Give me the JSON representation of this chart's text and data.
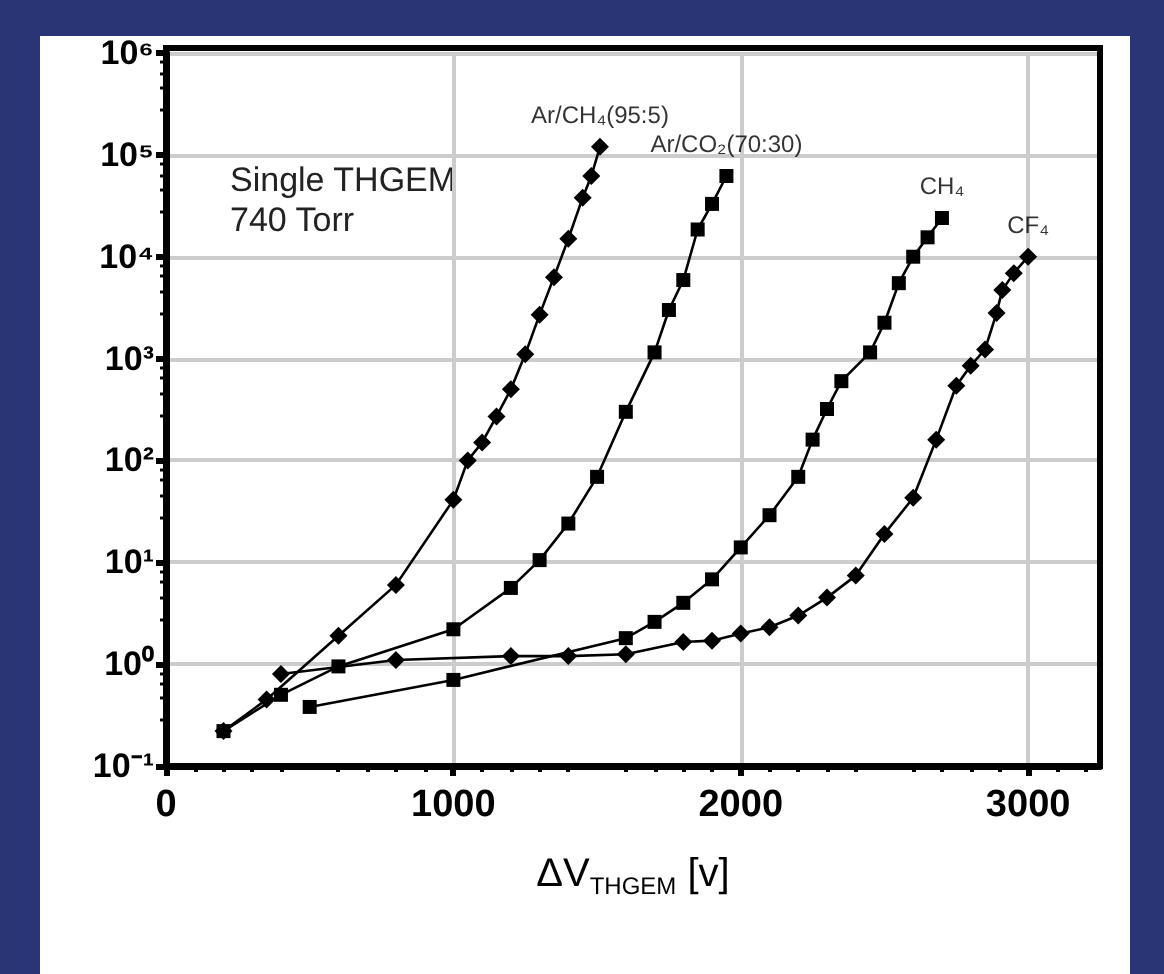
{
  "chart_data": {
    "type": "line",
    "xlabel": "ΔV$_{THGEM}$ [v]",
    "annotations": [
      "Single THGEM\n740 Torr"
    ],
    "series": [
      {
        "name": "Ar/CH₄(95:5)",
        "color": "#000000",
        "marker": "diamond",
        "x": [
          200,
          350,
          600,
          800,
          1000,
          1050,
          1100,
          1150,
          1200,
          1250,
          1300,
          1350,
          1400,
          1450,
          1480,
          1510
        ],
        "values": [
          0.22,
          0.45,
          1.9,
          6,
          41,
          100,
          150,
          270,
          500,
          1100,
          2700,
          6300,
          15000,
          38000,
          62000,
          120000
        ]
      },
      {
        "name": "Ar/CO₂(70:30)",
        "color": "#000000",
        "marker": "square",
        "x": [
          200,
          400,
          600,
          1000,
          1200,
          1300,
          1400,
          1500,
          1600,
          1700,
          1750,
          1800,
          1850,
          1900,
          1950
        ],
        "values": [
          0.22,
          0.5,
          0.95,
          2.2,
          5.6,
          10.5,
          24,
          69,
          300,
          1150,
          3000,
          5900,
          18500,
          33000,
          62000
        ]
      },
      {
        "name": "CH₄",
        "color": "#000000",
        "marker": "square",
        "x": [
          500,
          1000,
          1600,
          1700,
          1800,
          1900,
          2000,
          2100,
          2200,
          2250,
          2300,
          2350,
          2450,
          2500,
          2550,
          2600,
          2650,
          2700
        ],
        "values": [
          0.38,
          0.7,
          1.8,
          2.6,
          4,
          6.8,
          14,
          29,
          69,
          160,
          320,
          600,
          1150,
          2250,
          5500,
          10000,
          15500,
          24000
        ]
      },
      {
        "name": "CF₄",
        "color": "#000000",
        "marker": "diamond",
        "x": [
          400,
          800,
          1200,
          1400,
          1600,
          1800,
          1900,
          2000,
          2100,
          2200,
          2300,
          2400,
          2500,
          2600,
          2680,
          2750,
          2800,
          2850,
          2890,
          2910,
          2950,
          3000
        ],
        "values": [
          0.8,
          1.1,
          1.2,
          1.2,
          1.25,
          1.65,
          1.7,
          2,
          2.3,
          3,
          4.5,
          7.4,
          19,
          43,
          160,
          540,
          850,
          1230,
          2800,
          4700,
          6900,
          10000
        ]
      }
    ],
    "log": "y",
    "xlim": [
      0,
      3250
    ],
    "xticks": [
      0,
      1000,
      2000,
      3000
    ],
    "ylim": [
      0.1,
      1000000
    ],
    "yticks": [
      {
        "value": 0.1,
        "label": "10⁻¹"
      },
      {
        "value": 1,
        "label": "10⁰"
      },
      {
        "value": 10,
        "label": "10¹"
      },
      {
        "value": 100,
        "label": "10²"
      },
      {
        "value": 1000,
        "label": "10³"
      },
      {
        "value": 10000,
        "label": "10⁴"
      },
      {
        "value": 100000,
        "label": "10⁵"
      },
      {
        "value": 1000000,
        "label": "10⁶"
      }
    ],
    "grid": true,
    "legend": false,
    "line_style": "solid"
  }
}
